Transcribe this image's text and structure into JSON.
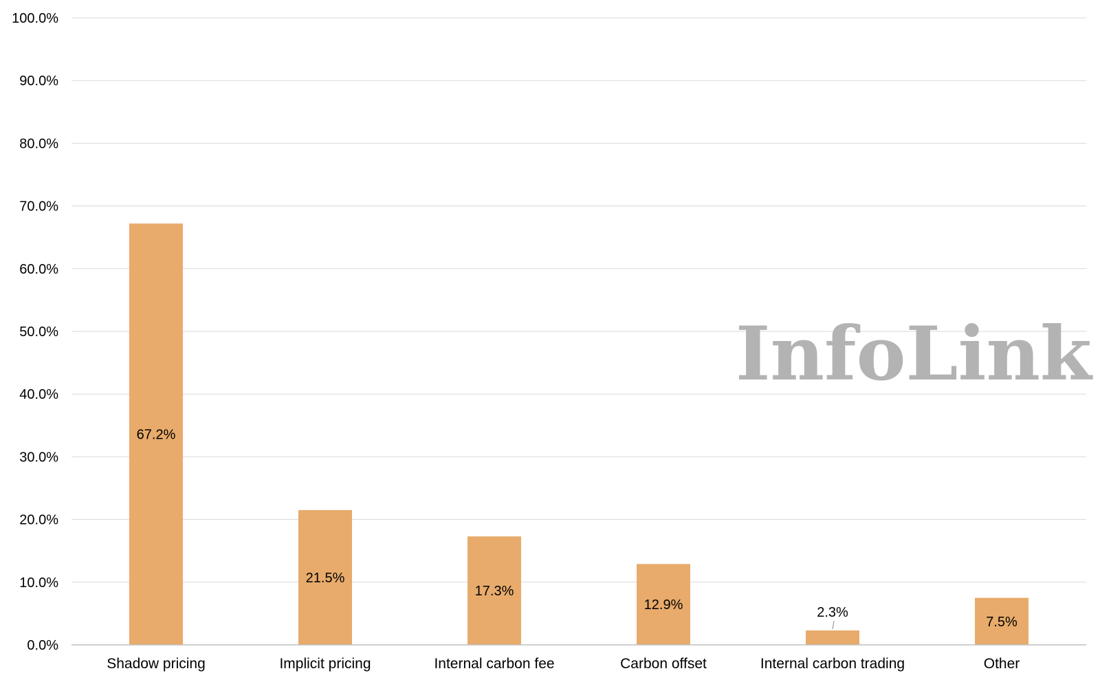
{
  "chart_data": {
    "type": "bar",
    "categories": [
      "Shadow pricing",
      "Implicit pricing",
      "Internal carbon fee",
      "Carbon offset",
      "Internal carbon trading",
      "Other"
    ],
    "values": [
      67.2,
      21.5,
      17.3,
      12.9,
      2.3,
      7.5
    ],
    "data_labels": [
      "67.2%",
      "21.5%",
      "17.3%",
      "12.9%",
      "2.3%",
      "7.5%"
    ],
    "title": "",
    "xlabel": "",
    "ylabel": "",
    "ylim": [
      0,
      100
    ],
    "y_ticks": [
      "0.0%",
      "10.0%",
      "20.0%",
      "30.0%",
      "40.0%",
      "50.0%",
      "60.0%",
      "70.0%",
      "80.0%",
      "90.0%",
      "100.0%"
    ],
    "grid": true,
    "legend": "none",
    "bar_color": "#e8ab6b"
  },
  "watermark": "InfoLink"
}
